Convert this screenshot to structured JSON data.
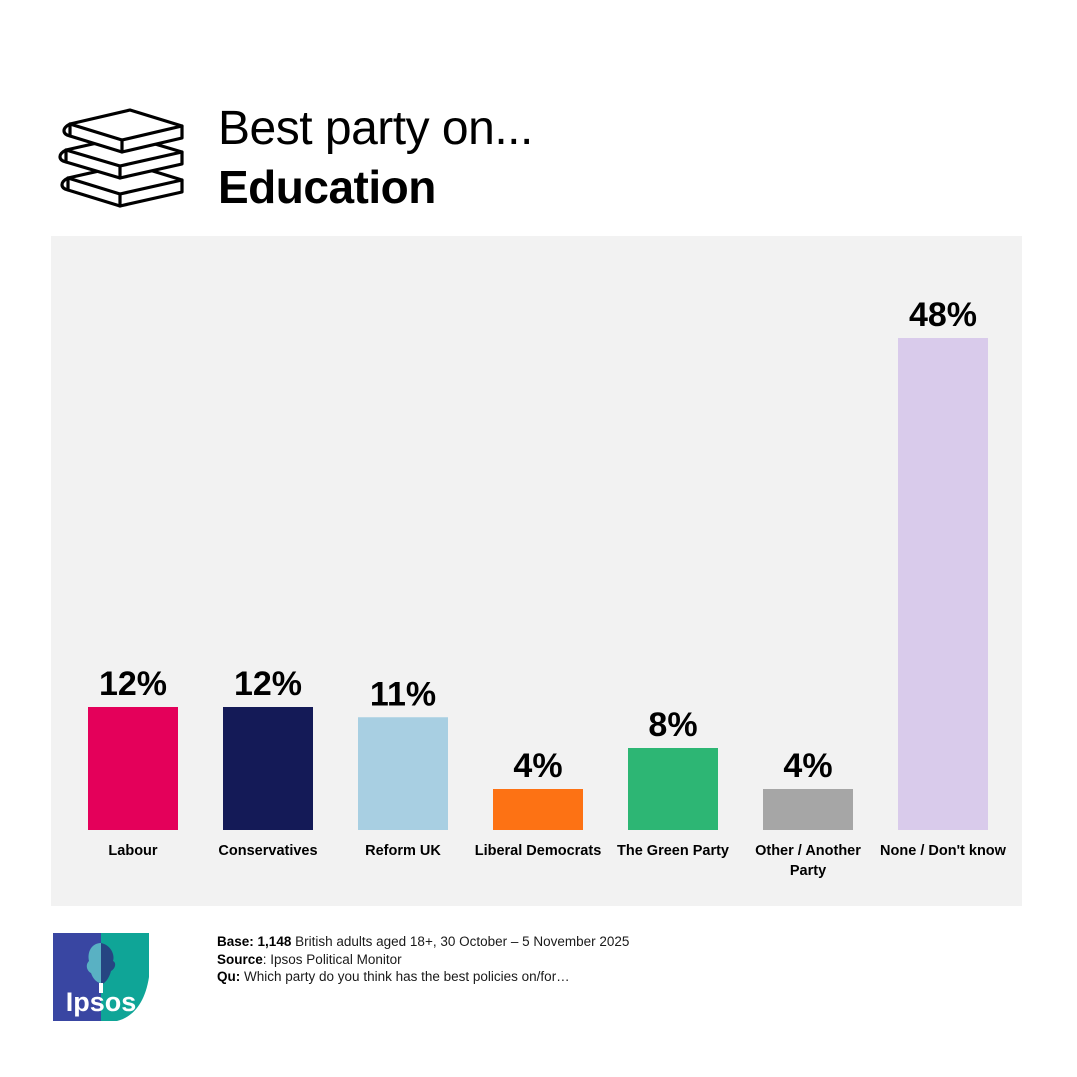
{
  "header": {
    "icon": "books-icon",
    "title_prefix": "Best party on...",
    "title_topic": "Education"
  },
  "chart_data": {
    "type": "bar",
    "title": "Best party on... Education",
    "categories": [
      "Labour",
      "Conservatives",
      "Reform UK",
      "Liberal Democrats",
      "The Green Party",
      "Other / Another Party",
      "None / Don't know"
    ],
    "category_lines": [
      [
        "Labour"
      ],
      [
        "Conservatives"
      ],
      [
        "Reform UK"
      ],
      [
        "Liberal Democrats"
      ],
      [
        "The Green Party"
      ],
      [
        "Other / Another",
        "Party"
      ],
      [
        "None / Don't know"
      ]
    ],
    "values": [
      12,
      12,
      11,
      4,
      8,
      4,
      48
    ],
    "value_labels": [
      "12%",
      "12%",
      "11%",
      "4%",
      "8%",
      "4%",
      "48%"
    ],
    "colors": [
      "#e4005a",
      "#141a57",
      "#a8cfe2",
      "#fd7214",
      "#2db674",
      "#a6a6a6",
      "#d9cbeb"
    ],
    "unit": "%",
    "ylim": [
      0,
      48
    ],
    "grid": false,
    "legend": "none",
    "background": "#f2f2f2"
  },
  "footer": {
    "base_label": "Base:",
    "base_value": "1,148",
    "base_text": "British adults aged 18+,  30 October – 5 November 2025",
    "source_label": "Source",
    "source_text": ": Ipsos Political Monitor",
    "question_label": "Qu:",
    "question_text": "Which party do you think has the best policies on/for…"
  },
  "logo": {
    "text": "Ipsos",
    "colors": [
      "#3946a2",
      "#0fa597"
    ]
  }
}
